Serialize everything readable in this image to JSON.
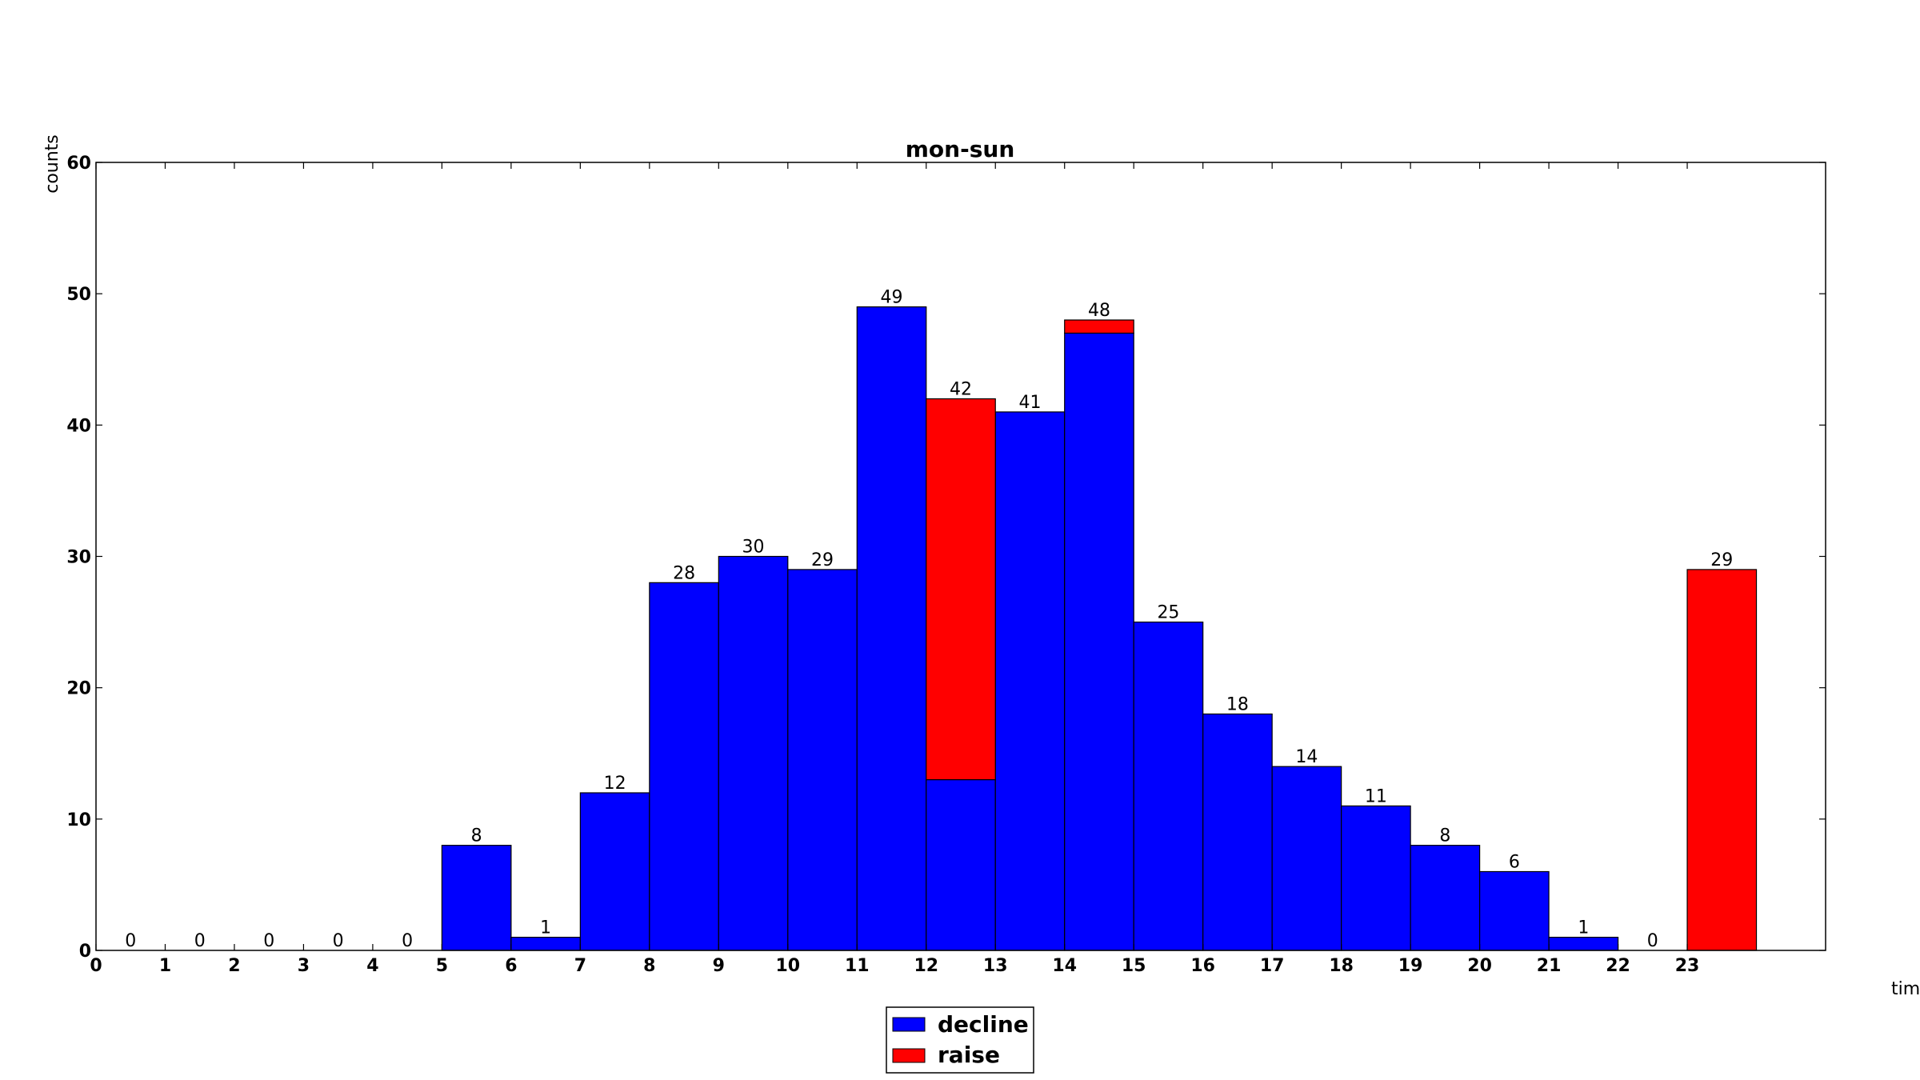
{
  "chart_data": {
    "type": "bar",
    "stacked": true,
    "title": "mon-sun",
    "xlabel": "tim",
    "ylabel": "counts",
    "ylim": [
      0,
      60
    ],
    "xlim": [
      0,
      25
    ],
    "y_ticks": [
      0,
      10,
      20,
      30,
      40,
      50,
      60
    ],
    "x_ticks": [
      0,
      1,
      2,
      3,
      4,
      5,
      6,
      7,
      8,
      9,
      10,
      11,
      12,
      13,
      14,
      15,
      16,
      17,
      18,
      19,
      20,
      21,
      22,
      23
    ],
    "categories": [
      0,
      1,
      2,
      3,
      4,
      5,
      6,
      7,
      8,
      9,
      10,
      11,
      12,
      13,
      14,
      15,
      16,
      17,
      18,
      19,
      20,
      21,
      22,
      23
    ],
    "series": [
      {
        "name": "decline",
        "color": "#0000ff",
        "values": [
          0,
          0,
          0,
          0,
          0,
          8,
          1,
          12,
          28,
          30,
          29,
          49,
          13,
          41,
          47,
          25,
          18,
          14,
          11,
          8,
          6,
          1,
          0,
          0
        ]
      },
      {
        "name": "raise",
        "color": "#ff0000",
        "values": [
          0,
          0,
          0,
          0,
          0,
          0,
          0,
          0,
          0,
          0,
          0,
          0,
          29,
          0,
          1,
          0,
          0,
          0,
          0,
          0,
          0,
          0,
          0,
          29
        ]
      }
    ],
    "totals": [
      0,
      0,
      0,
      0,
      0,
      8,
      1,
      12,
      28,
      30,
      29,
      49,
      42,
      41,
      48,
      25,
      18,
      14,
      11,
      8,
      6,
      1,
      0,
      29
    ],
    "grid": false,
    "legend_position": "bottom-center"
  }
}
